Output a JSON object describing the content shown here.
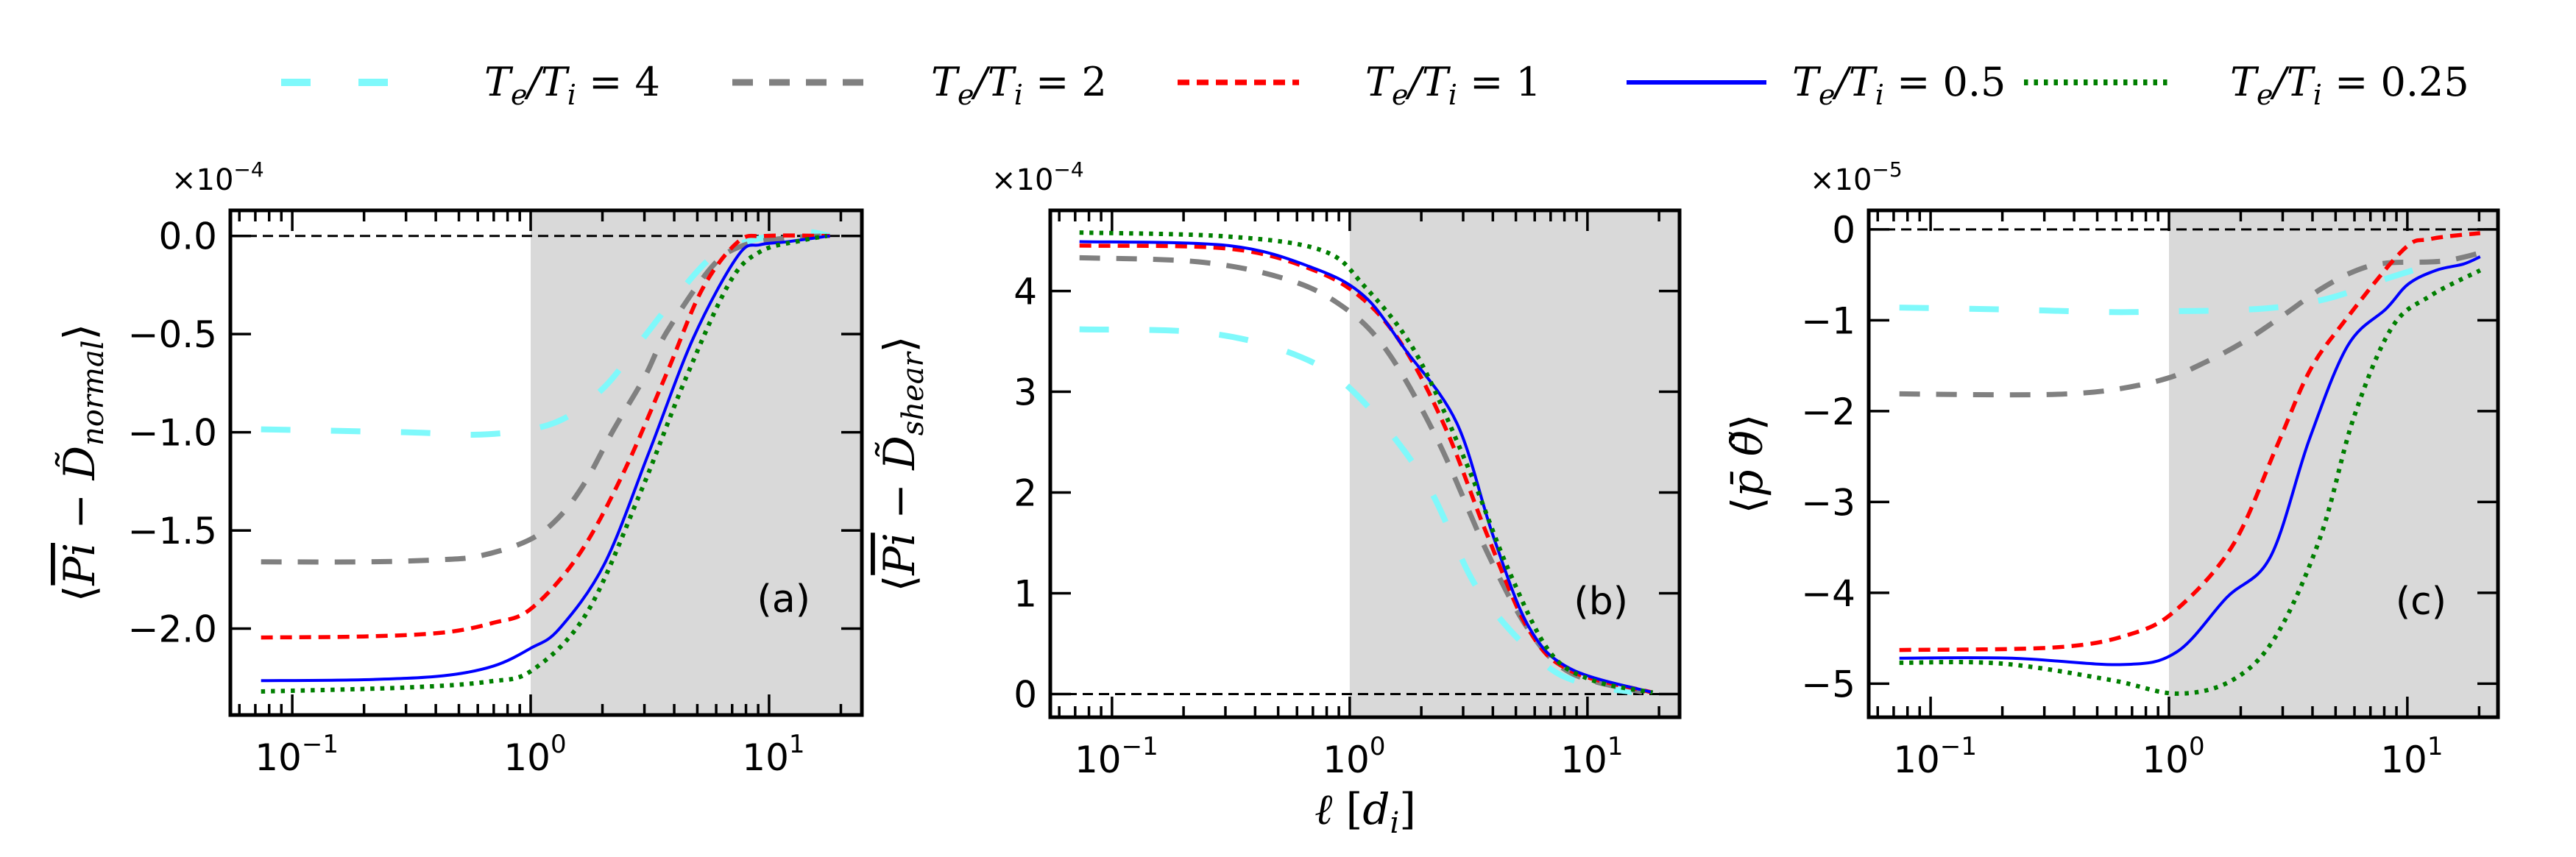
{
  "legend": {
    "entries": [
      {
        "label": "T_e/T_i = 4",
        "lhs": "T",
        "sub1": "e",
        "mid": "/T",
        "sub2": "i",
        "rhs": " = 4",
        "color": "#7ff9fb",
        "style": "long-dash"
      },
      {
        "label": "T_e/T_i = 2",
        "lhs": "T",
        "sub1": "e",
        "mid": "/T",
        "sub2": "i",
        "rhs": " = 2",
        "color": "#808080",
        "style": "dash"
      },
      {
        "label": "T_e/T_i = 1",
        "lhs": "T",
        "sub1": "e",
        "mid": "/T",
        "sub2": "i",
        "rhs": " = 1",
        "color": "#ff0000",
        "style": "short-dash"
      },
      {
        "label": "T_e/T_i = 0.5",
        "lhs": "T",
        "sub1": "e",
        "mid": "/T",
        "sub2": "i",
        "rhs": " = 0.5",
        "color": "#0000ff",
        "style": "solid"
      },
      {
        "label": "T_e/T_i = 0.25",
        "lhs": "T",
        "sub1": "e",
        "mid": "/T",
        "sub2": "i",
        "rhs": " = 0.25",
        "color": "#007f00",
        "style": "dotted"
      }
    ],
    "placement": "top-center"
  },
  "shared_xlabel": "ℓ [d_i]",
  "shared_xlabel_parts": {
    "ell": "ℓ",
    "open": " [",
    "d": "d",
    "sub": "i",
    "close": "]"
  },
  "shading": {
    "from_x": 1.0,
    "color": "#d9d9d9"
  },
  "chart_data": [
    {
      "type": "line",
      "panel": "(a)",
      "ylabel": "⟨Pi‾ − D̃_normal⟩",
      "ylabel_parts": {
        "open": "⟨",
        "pi": "Pi",
        "minus": " − ",
        "d": "D̃",
        "sub": "normal",
        "close": "⟩"
      },
      "xscale": "log",
      "xlim": [
        0.055,
        24.5
      ],
      "ylim": [
        -2.44,
        0.13
      ],
      "multiplier": "×10⁻⁴",
      "multiplier_parts": {
        "base": "×10",
        "exp": "−4"
      },
      "xticks": [
        {
          "v": 0.1,
          "base": "10",
          "exp": "−1"
        },
        {
          "v": 1,
          "base": "10",
          "exp": "0"
        },
        {
          "v": 10,
          "base": "10",
          "exp": "1"
        }
      ],
      "yticks": [
        {
          "v": 0.0,
          "label": "0.0"
        },
        {
          "v": -0.5,
          "label": "−0.5"
        },
        {
          "v": -1.0,
          "label": "−1.0"
        },
        {
          "v": -1.5,
          "label": "−1.5"
        },
        {
          "v": -2.0,
          "label": "−2.0"
        }
      ],
      "reference_line": 0,
      "series": [
        {
          "name": "T_e/T_i = 4",
          "x": [
            0.074,
            0.3,
            0.665,
            1.27,
            2.0,
            2.88,
            4.0,
            5.73,
            8.0,
            13.5,
            18
          ],
          "y": [
            -0.985,
            -1.0,
            -1.01,
            -0.95,
            -0.78,
            -0.54,
            -0.32,
            -0.11,
            -0.03,
            0.02,
            0.0
          ]
        },
        {
          "name": "T_e/T_i = 2",
          "x": [
            0.074,
            0.2,
            0.4,
            0.61,
            0.98,
            1.32,
            1.7,
            2.22,
            3.0,
            3.72,
            5.73,
            7.74,
            12,
            18
          ],
          "y": [
            -1.66,
            -1.66,
            -1.65,
            -1.63,
            -1.55,
            -1.43,
            -1.25,
            -0.99,
            -0.72,
            -0.49,
            -0.16,
            -0.05,
            -0.01,
            0.0
          ]
        },
        {
          "name": "T_e/T_i = 1",
          "x": [
            0.074,
            0.2,
            0.43,
            0.7,
            1.0,
            1.58,
            2.42,
            3.72,
            5.25,
            7.41,
            9.6,
            18
          ],
          "y": [
            -2.045,
            -2.04,
            -2.02,
            -1.97,
            -1.9,
            -1.63,
            -1.22,
            -0.7,
            -0.27,
            -0.03,
            0.0,
            0.0
          ]
        },
        {
          "name": "T_e/T_i = 0.5",
          "x": [
            0.074,
            0.2,
            0.43,
            0.7,
            1.0,
            1.32,
            2.04,
            3.14,
            4.81,
            7.41,
            9.18,
            11.9,
            18
          ],
          "y": [
            -2.265,
            -2.26,
            -2.24,
            -2.19,
            -2.1,
            -2.0,
            -1.67,
            -1.1,
            -0.52,
            -0.1,
            -0.045,
            -0.03,
            0.0
          ]
        },
        {
          "name": "T_e/T_i = 0.25",
          "x": [
            0.074,
            0.3,
            0.665,
            1.02,
            1.72,
            2.88,
            4.42,
            6.81,
            9.18,
            13.5,
            17.5
          ],
          "y": [
            -2.32,
            -2.3,
            -2.27,
            -2.21,
            -1.92,
            -1.31,
            -0.74,
            -0.24,
            -0.08,
            -0.025,
            0.0
          ]
        }
      ]
    },
    {
      "type": "line",
      "panel": "(b)",
      "ylabel": "⟨Pi‾ − D̃_shear⟩",
      "ylabel_parts": {
        "open": "⟨",
        "pi": "Pi",
        "minus": " − ",
        "d": "D̃",
        "sub": "shear",
        "close": "⟩"
      },
      "xscale": "log",
      "xlim": [
        0.055,
        24.4
      ],
      "ylim": [
        -0.23,
        4.8
      ],
      "multiplier": "×10⁻⁴",
      "multiplier_parts": {
        "base": "×10",
        "exp": "−4"
      },
      "xticks": [
        {
          "v": 0.1,
          "base": "10",
          "exp": "−1"
        },
        {
          "v": 1,
          "base": "10",
          "exp": "0"
        },
        {
          "v": 10,
          "base": "10",
          "exp": "1"
        }
      ],
      "yticks": [
        {
          "v": 0,
          "label": "0"
        },
        {
          "v": 1,
          "label": "1"
        },
        {
          "v": 2,
          "label": "2"
        },
        {
          "v": 3,
          "label": "3"
        },
        {
          "v": 4,
          "label": "4"
        }
      ],
      "reference_line": 0,
      "series": [
        {
          "name": "T_e/T_i = 4",
          "x": [
            0.073,
            0.257,
            0.63,
            1.09,
            2.09,
            3.44,
            6.3,
            9.4,
            15.4
          ],
          "y": [
            3.62,
            3.58,
            3.34,
            2.95,
            2.1,
            1.05,
            0.34,
            0.11,
            0.02
          ]
        },
        {
          "name": "T_e/T_i = 2",
          "x": [
            0.073,
            0.23,
            0.52,
            0.89,
            1.4,
            2.31,
            3.8,
            5.69,
            8.5,
            17
          ],
          "y": [
            4.33,
            4.29,
            4.13,
            3.88,
            3.44,
            2.55,
            1.4,
            0.63,
            0.21,
            0.02
          ]
        },
        {
          "name": "T_e/T_i = 1",
          "x": [
            0.073,
            0.31,
            0.7,
            1.15,
            1.71,
            2.55,
            3.8,
            5.69,
            8.5,
            18.8
          ],
          "y": [
            4.45,
            4.42,
            4.21,
            3.91,
            3.42,
            2.62,
            1.57,
            0.63,
            0.23,
            0.015
          ]
        },
        {
          "name": "T_e/T_i = 0.5",
          "x": [
            0.073,
            0.31,
            0.7,
            1.15,
            1.71,
            2.82,
            4.01,
            5.69,
            8.5,
            18.8
          ],
          "y": [
            4.49,
            4.45,
            4.23,
            3.95,
            3.42,
            2.69,
            1.57,
            0.66,
            0.25,
            0.015
          ]
        },
        {
          "name": "T_e/T_i = 0.25",
          "x": [
            0.073,
            0.31,
            0.77,
            1.15,
            1.89,
            3.12,
            4.66,
            6.93,
            10.4,
            18.8
          ],
          "y": [
            4.58,
            4.54,
            4.4,
            4.05,
            3.39,
            2.27,
            1.23,
            0.42,
            0.14,
            0.015
          ]
        }
      ]
    },
    {
      "type": "line",
      "panel": "(c)",
      "ylabel": "⟨p‾ θ̃⟩",
      "ylabel_parts": {
        "open": "⟨",
        "p": "p̄",
        "space": " ",
        "theta": "θ̃",
        "close": "⟩"
      },
      "xscale": "log",
      "xlim": [
        0.055,
        24.0
      ],
      "ylim": [
        -5.37,
        0.21
      ],
      "multiplier": "×10⁻⁵",
      "multiplier_parts": {
        "base": "×10",
        "exp": "−5"
      },
      "xticks": [
        {
          "v": 0.1,
          "base": "10",
          "exp": "−1"
        },
        {
          "v": 1,
          "base": "10",
          "exp": "0"
        },
        {
          "v": 10,
          "base": "10",
          "exp": "1"
        }
      ],
      "yticks": [
        {
          "v": 0,
          "label": "0"
        },
        {
          "v": -1,
          "label": "−1"
        },
        {
          "v": -2,
          "label": "−2"
        },
        {
          "v": -3,
          "label": "−3"
        },
        {
          "v": -4,
          "label": "−4"
        },
        {
          "v": -5,
          "label": "−5"
        }
      ],
      "reference_line": 0,
      "series": [
        {
          "name": "T_e/T_i = 4",
          "x": [
            0.074,
            0.2,
            0.57,
            1.0,
            1.8,
            3.0,
            4.81,
            8.0,
            11.8
          ],
          "y": [
            -0.86,
            -0.88,
            -0.91,
            -0.9,
            -0.89,
            -0.85,
            -0.75,
            -0.55,
            -0.41
          ]
        },
        {
          "name": "T_e/T_i = 2",
          "x": [
            0.074,
            0.2,
            0.376,
            0.6,
            0.98,
            1.4,
            2.05,
            3.0,
            4.31,
            6.0,
            8.17,
            13.9,
            20.2
          ],
          "y": [
            -1.81,
            -1.82,
            -1.81,
            -1.76,
            -1.64,
            -1.47,
            -1.24,
            -0.95,
            -0.66,
            -0.46,
            -0.37,
            -0.35,
            -0.26
          ]
        },
        {
          "name": "T_e/T_i = 1",
          "x": [
            0.074,
            0.34,
            0.7,
            1.08,
            1.85,
            2.82,
            3.87,
            5.34,
            9.56,
            12.5,
            20.2
          ],
          "y": [
            -4.63,
            -4.6,
            -4.45,
            -4.18,
            -3.48,
            -2.4,
            -1.57,
            -1.04,
            -0.23,
            -0.105,
            -0.04
          ]
        },
        {
          "name": "T_e/T_i = 0.5",
          "x": [
            0.074,
            0.22,
            0.64,
            1.08,
            1.75,
            2.67,
            3.87,
            5.62,
            8.17,
            10.1,
            13.2,
            17.2,
            20.2
          ],
          "y": [
            -4.72,
            -4.72,
            -4.79,
            -4.65,
            -4.05,
            -3.6,
            -2.32,
            -1.28,
            -0.87,
            -0.6,
            -0.45,
            -0.38,
            -0.3
          ]
        },
        {
          "name": "T_e/T_i = 0.25",
          "x": [
            0.074,
            0.2,
            0.57,
            1.08,
            1.85,
            2.82,
            4.31,
            5.96,
            8.61,
            12.5,
            20.2
          ],
          "y": [
            -4.77,
            -4.78,
            -4.96,
            -5.11,
            -4.96,
            -4.47,
            -3.39,
            -2.07,
            -1.08,
            -0.73,
            -0.45
          ]
        }
      ]
    }
  ]
}
